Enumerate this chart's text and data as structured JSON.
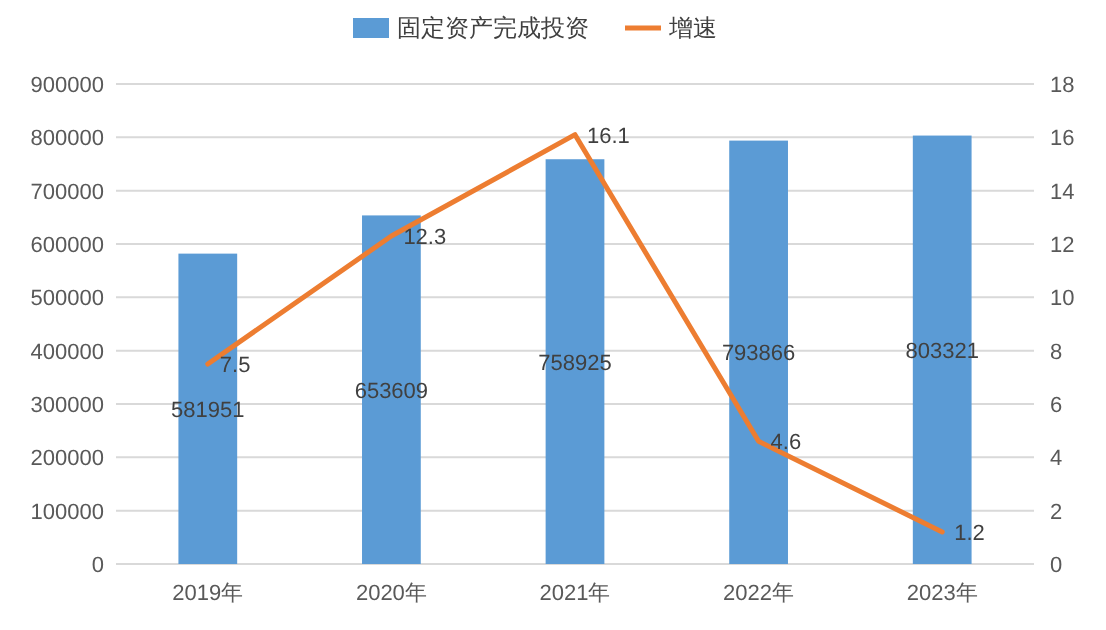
{
  "chart_data": {
    "type": "bar",
    "categories": [
      "2019年",
      "2020年",
      "2021年",
      "2022年",
      "2023年"
    ],
    "series": [
      {
        "name": "固定资产完成投资",
        "color": "#5b9bd5",
        "values": [
          581951,
          653609,
          758925,
          793866,
          803321
        ]
      },
      {
        "name": "增速",
        "type": "line",
        "axis": "y2",
        "color": "#ed7d31",
        "values": [
          7.5,
          12.3,
          16.1,
          4.6,
          1.2
        ]
      }
    ],
    "ylim": [
      0,
      900000
    ],
    "yticks": [
      0,
      100000,
      200000,
      300000,
      400000,
      500000,
      600000,
      700000,
      800000,
      900000
    ],
    "y2lim": [
      0,
      18
    ],
    "y2ticks": [
      0,
      2,
      4,
      6,
      8,
      10,
      12,
      14,
      16,
      18
    ],
    "grid": "y",
    "legend": "top",
    "data_labels": true,
    "marker": "none",
    "line_style": "solid"
  }
}
